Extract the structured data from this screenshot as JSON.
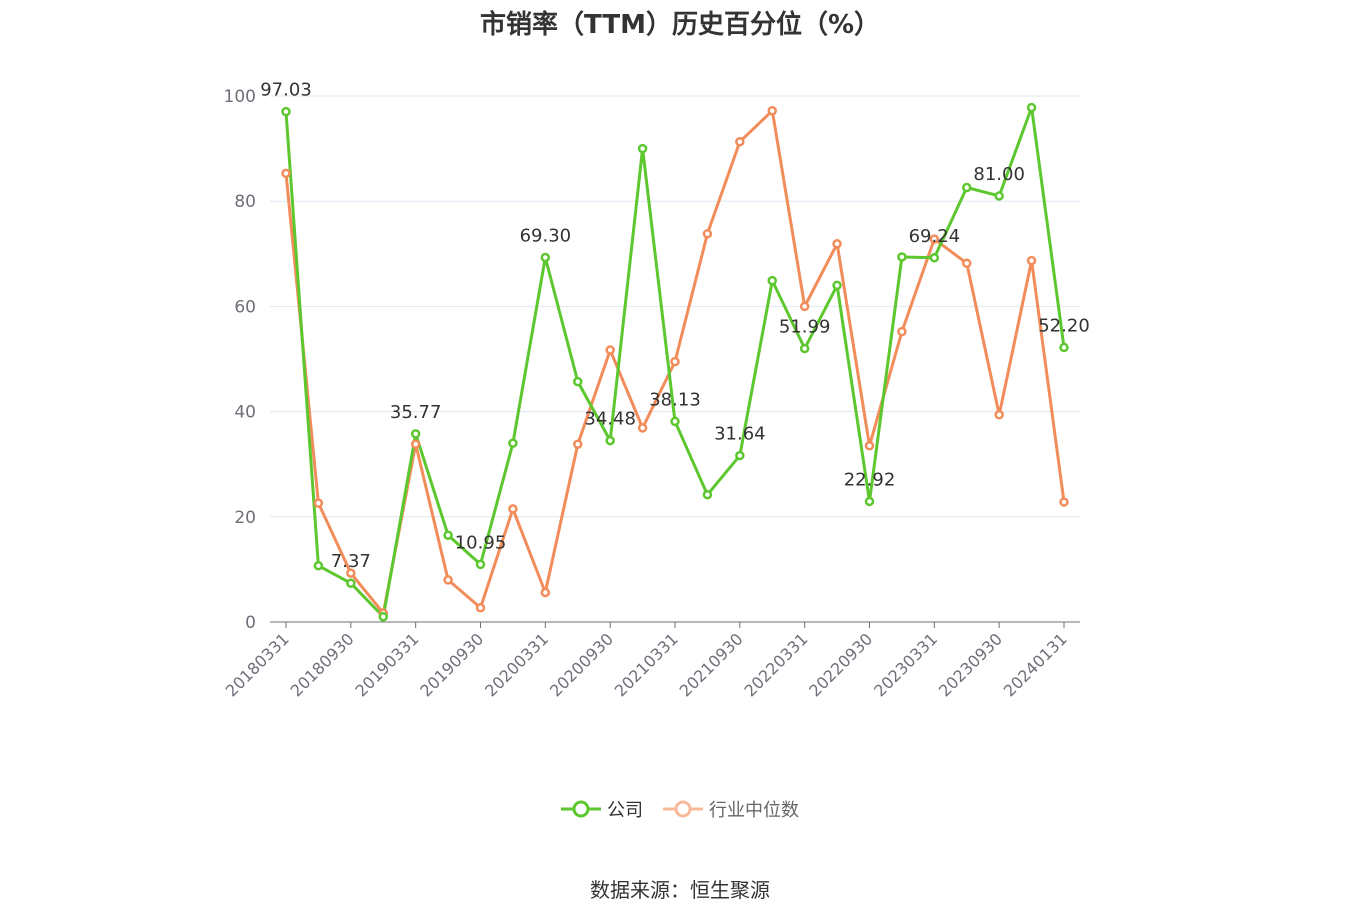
{
  "source_label": "数据来源：恒生聚源",
  "chart_data": {
    "type": "line",
    "title": "市销率（TTM）历史百分位（%）",
    "ylim": [
      0,
      100
    ],
    "yticks": [
      0,
      20,
      40,
      60,
      80,
      100
    ],
    "x": [
      "20180331",
      "20180630",
      "20180930",
      "20181231",
      "20190331",
      "20190630",
      "20190930",
      "20191231",
      "20200331",
      "20200630",
      "20200930",
      "20201231",
      "20210331",
      "20210630",
      "20210930",
      "20211231",
      "20220331",
      "20220630",
      "20220930",
      "20221231",
      "20230331",
      "20230630",
      "20230930",
      "20231231",
      "20240131"
    ],
    "xtick_labels": [
      "20180331",
      "20180930",
      "20190331",
      "20190930",
      "20200331",
      "20200930",
      "20210331",
      "20210930",
      "20220331",
      "20220930",
      "20230331",
      "20230930",
      "20240131"
    ],
    "series": [
      {
        "name": "公司",
        "color": "#5cc72e",
        "values": [
          97.03,
          10.7,
          7.37,
          1.0,
          35.77,
          16.5,
          10.95,
          34.0,
          69.3,
          45.7,
          34.48,
          90.0,
          38.13,
          24.2,
          31.64,
          64.9,
          51.99,
          64.0,
          22.92,
          69.4,
          69.24,
          82.6,
          81.0,
          97.8,
          52.2
        ],
        "labeled_points": [
          {
            "i": 0,
            "text": "97.03"
          },
          {
            "i": 2,
            "text": "7.37"
          },
          {
            "i": 4,
            "text": "35.77"
          },
          {
            "i": 6,
            "text": "10.95"
          },
          {
            "i": 8,
            "text": "69.30"
          },
          {
            "i": 10,
            "text": "34.48"
          },
          {
            "i": 12,
            "text": "38.13"
          },
          {
            "i": 14,
            "text": "31.64"
          },
          {
            "i": 16,
            "text": "51.99"
          },
          {
            "i": 18,
            "text": "22.92"
          },
          {
            "i": 20,
            "text": "69.24"
          },
          {
            "i": 22,
            "text": "81.00"
          },
          {
            "i": 24,
            "text": "52.20"
          }
        ]
      },
      {
        "name": "行业中位数",
        "color": "#f28c5a",
        "values": [
          85.3,
          22.6,
          9.3,
          1.7,
          33.8,
          8.0,
          2.7,
          21.5,
          5.6,
          33.8,
          51.7,
          36.9,
          49.5,
          73.8,
          91.3,
          97.2,
          60.0,
          71.9,
          33.5,
          55.2,
          72.8,
          68.2,
          39.4,
          68.7,
          22.8
        ]
      }
    ]
  }
}
